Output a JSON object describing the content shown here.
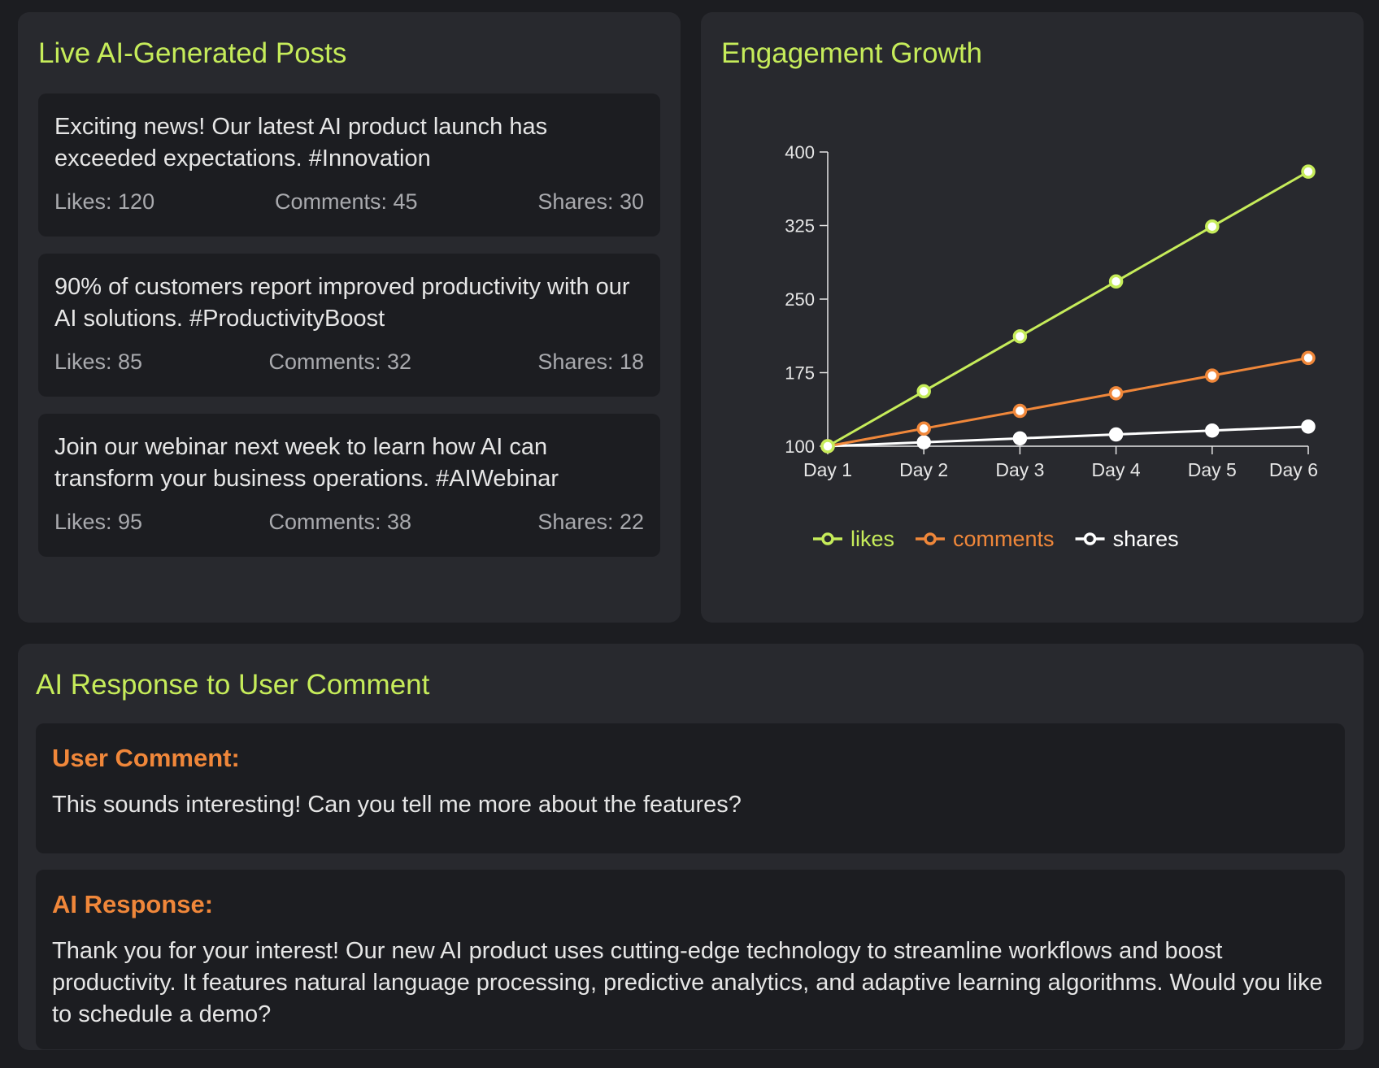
{
  "posts_panel": {
    "title": "Live AI-Generated Posts",
    "posts": [
      {
        "text": "Exciting news! Our latest AI product launch has exceeded expectations. #Innovation",
        "likes": "Likes: 120",
        "comments": "Comments: 45",
        "shares": "Shares: 30"
      },
      {
        "text": "90% of customers report improved productivity with our AI solutions. #ProductivityBoost",
        "likes": "Likes: 85",
        "comments": "Comments: 32",
        "shares": "Shares: 18"
      },
      {
        "text": "Join our webinar next week to learn how AI can transform your business operations. #AIWebinar",
        "likes": "Likes: 95",
        "comments": "Comments: 38",
        "shares": "Shares: 22"
      }
    ]
  },
  "chart_panel": {
    "title": "Engagement Growth"
  },
  "chart_data": {
    "type": "line",
    "title": "Engagement Growth",
    "categories": [
      "Day 1",
      "Day 2",
      "Day 3",
      "Day 4",
      "Day 5",
      "Day 6"
    ],
    "series": [
      {
        "name": "likes",
        "color": "#c6ec5a",
        "values": [
          100,
          156,
          212,
          268,
          324,
          380
        ]
      },
      {
        "name": "comments",
        "color": "#f0873a",
        "values": [
          100,
          118,
          136,
          154,
          172,
          190
        ]
      },
      {
        "name": "shares",
        "color": "#ffffff",
        "values": [
          100,
          104,
          108,
          112,
          116,
          120
        ]
      }
    ],
    "ylim": [
      100,
      400
    ],
    "yticks": [
      100,
      175,
      250,
      325,
      400
    ],
    "grid": false,
    "legend": "bottom-left"
  },
  "response_panel": {
    "title": "AI Response to User Comment",
    "user_label": "User Comment:",
    "user_text": "This sounds interesting! Can you tell me more about the features?",
    "ai_label": "AI Response:",
    "ai_text": "Thank you for your interest! Our new AI product uses cutting-edge technology to streamline workflows and boost productivity. It features natural language processing, predictive analytics, and adaptive learning algorithms. Would you like to schedule a demo?"
  }
}
